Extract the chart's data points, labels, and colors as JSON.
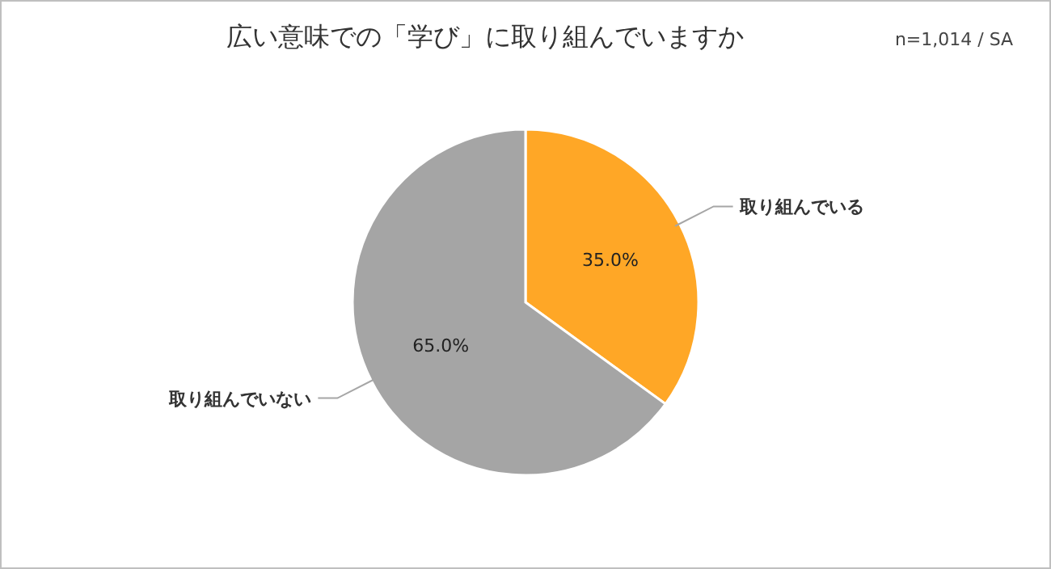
{
  "chart_data": {
    "type": "pie",
    "title": "広い意味での「学び」に取り組んでいますか",
    "annotations": [
      "n=1,014 / SA"
    ],
    "categories": [
      "取り組んでいる",
      "取り組んでいない"
    ],
    "values": [
      35,
      65
    ],
    "colors": [
      "#ffa726",
      "#a5a5a5"
    ],
    "value_labels": [
      "35.0%",
      "65.0%"
    ]
  }
}
